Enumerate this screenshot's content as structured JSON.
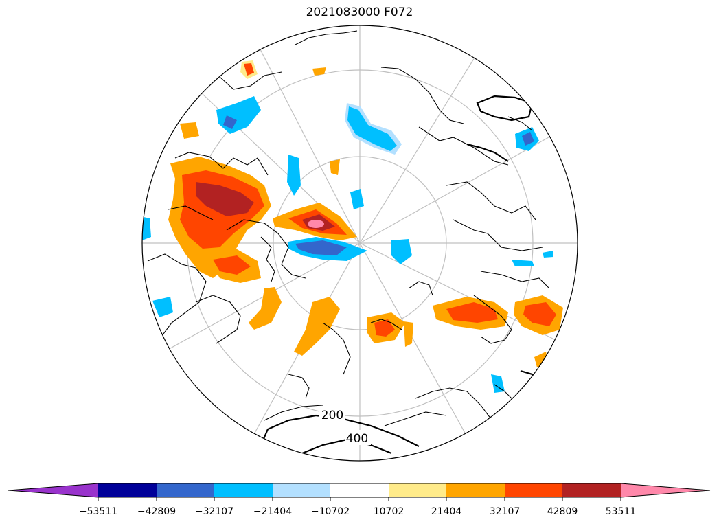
{
  "title": "2021083000 F072",
  "colorbar": {
    "colors": [
      "#9933cc",
      "#000099",
      "#3366cc",
      "#00bfff",
      "#b3e0ff",
      "#ffffff",
      "#ffeb8a",
      "#ffa500",
      "#ff4500",
      "#b22222",
      "#ff88aa"
    ],
    "ticks": [
      "−53511",
      "−42809",
      "−32107",
      "−21404",
      "−10702",
      "10702",
      "21404",
      "32107",
      "42809",
      "53511"
    ]
  },
  "contour_labels": [
    "200",
    "400"
  ]
}
